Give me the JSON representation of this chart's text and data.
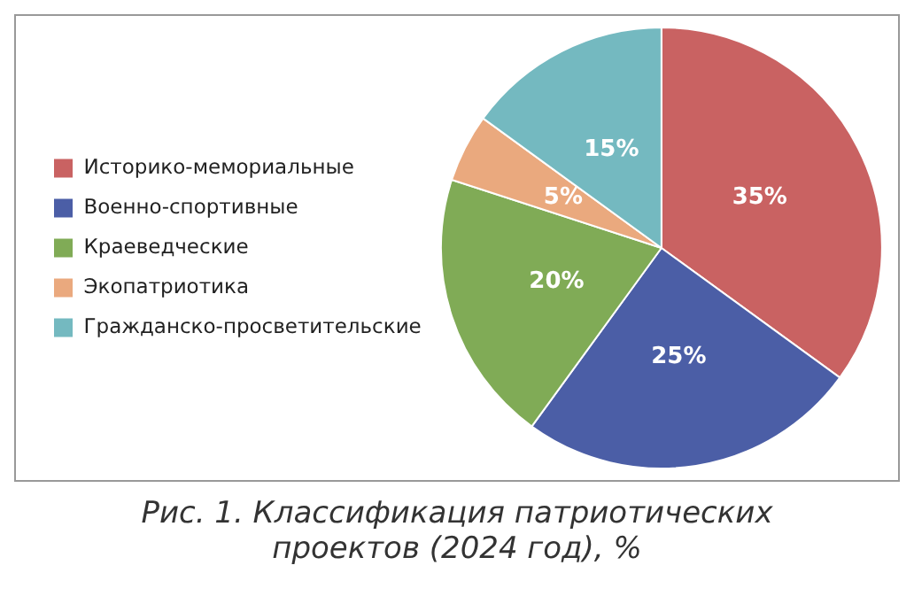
{
  "chart_data": {
    "type": "pie",
    "title": "Рис. 1. Классификация патриотических проектов (2024 год), %",
    "categories": [
      "Историко-мемориальные",
      "Военно-спортивные",
      "Краеведческие",
      "Экопатриотика",
      "Гражданско-просветительские"
    ],
    "values": [
      35,
      25,
      20,
      5,
      15
    ],
    "colors": [
      "#c96262",
      "#4b5ea6",
      "#80ab56",
      "#eaa97e",
      "#74b9c0"
    ],
    "value_labels": [
      "35%",
      "25%",
      "20%",
      "5%",
      "15%"
    ],
    "legend": "left"
  }
}
